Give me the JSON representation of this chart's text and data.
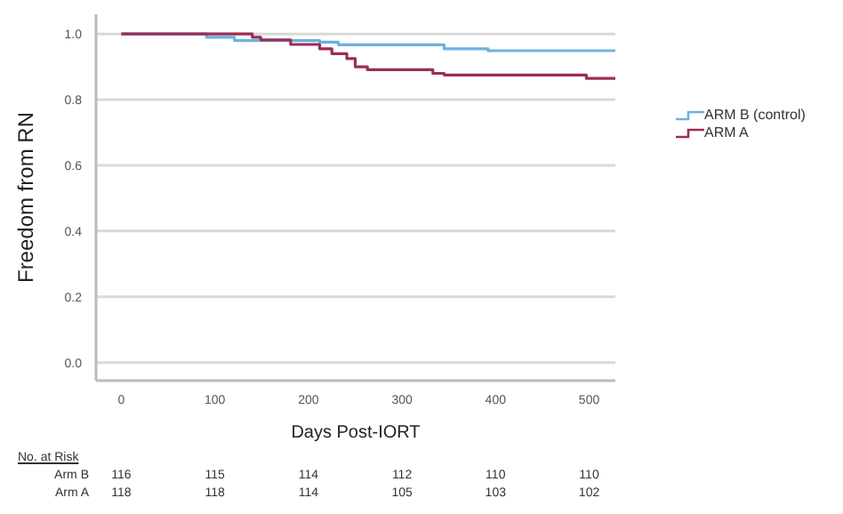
{
  "chart_data": {
    "type": "step",
    "xlabel": "Days Post-IORT",
    "ylabel": "Freedom from RN",
    "xlim": [
      -27,
      528
    ],
    "ylim": [
      -0.055,
      1.06
    ],
    "xticks": [
      0,
      100,
      200,
      300,
      400,
      500
    ],
    "yticks": [
      {
        "value": 0,
        "label": "0.0"
      },
      {
        "value": 0.2,
        "label": "0.2"
      },
      {
        "value": 0.4,
        "label": "0.4"
      },
      {
        "value": 0.6,
        "label": "0.6"
      },
      {
        "value": 0.8,
        "label": "0.8"
      },
      {
        "value": 1,
        "label": "1.0"
      }
    ],
    "grid": "y",
    "legend": "right",
    "line_style": "solid",
    "marker": "none",
    "series": [
      {
        "name": "ARM B (control)",
        "color": "#6bb3dc",
        "x": [
          0,
          91,
          121,
          212,
          232,
          345,
          392,
          528
        ],
        "values": [
          1,
          0.99,
          0.98,
          0.975,
          0.967,
          0.955,
          0.949,
          0.949
        ]
      },
      {
        "name": "ARM A",
        "color": "#9b2d5a",
        "x": [
          0,
          140,
          149,
          181,
          212,
          225,
          241,
          250,
          263,
          333,
          345,
          497,
          528
        ],
        "values": [
          1,
          0.99,
          0.982,
          0.968,
          0.955,
          0.94,
          0.925,
          0.9,
          0.891,
          0.88,
          0.875,
          0.865,
          0.865
        ]
      }
    ],
    "annotations": [
      "No. at Risk",
      "Arm B",
      "Arm A",
      "116",
      "115",
      "114",
      "112",
      "110",
      "110",
      "118",
      "118",
      "114",
      "105",
      "103",
      "102"
    ]
  }
}
